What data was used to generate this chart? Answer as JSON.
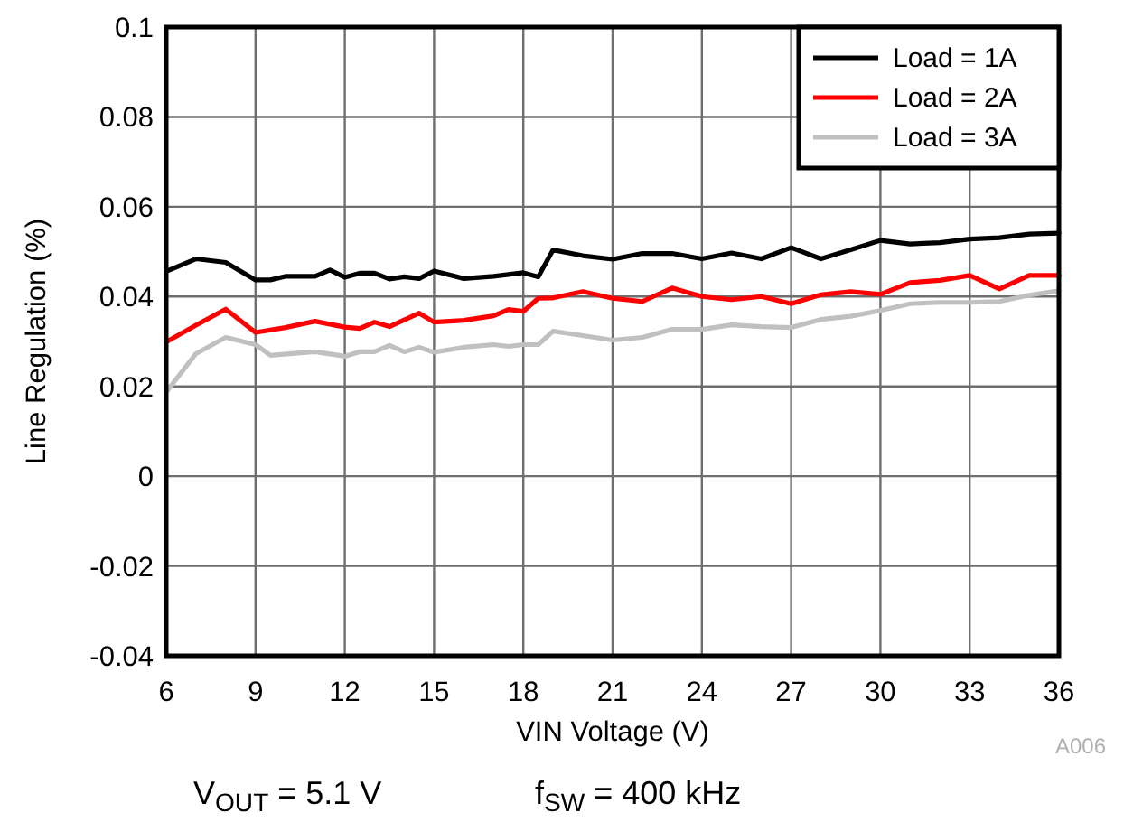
{
  "chart_data": {
    "type": "line",
    "xlabel": "VIN Voltage (V)",
    "ylabel": "Line Regulation (%)",
    "xlim": [
      6,
      36
    ],
    "xticks": [
      6,
      9,
      12,
      15,
      18,
      21,
      24,
      27,
      30,
      33,
      36
    ],
    "ylim": [
      -0.04,
      0.1
    ],
    "yticks": [
      -0.04,
      -0.02,
      0,
      0.02,
      0.04,
      0.06,
      0.08,
      0.1
    ],
    "grid": true,
    "legend": "top right",
    "series": [
      {
        "name": "Load = 1A",
        "color": "#000000",
        "x": [
          6,
          7,
          8,
          9,
          9.5,
          10,
          11,
          11.5,
          12,
          12.5,
          13,
          13.5,
          14,
          14.5,
          15,
          16,
          17,
          18,
          18.5,
          19,
          20,
          21,
          22,
          23,
          24,
          25,
          26,
          27,
          28,
          29,
          30,
          31,
          32,
          33,
          34,
          35,
          36
        ],
        "values": [
          0.0456,
          0.0484,
          0.0476,
          0.0437,
          0.0437,
          0.0445,
          0.0445,
          0.0459,
          0.0443,
          0.0452,
          0.0452,
          0.0439,
          0.0444,
          0.044,
          0.0457,
          0.044,
          0.0445,
          0.0453,
          0.0444,
          0.0504,
          0.0491,
          0.0483,
          0.0496,
          0.0496,
          0.0484,
          0.0497,
          0.0484,
          0.0509,
          0.0484,
          0.0504,
          0.0525,
          0.0517,
          0.052,
          0.0528,
          0.0531,
          0.0539,
          0.0541
        ]
      },
      {
        "name": "Load = 2A",
        "color": "#ff0000",
        "x": [
          6,
          7,
          8,
          9,
          10,
          11,
          12,
          12.5,
          13,
          13.5,
          14.5,
          15,
          16,
          17,
          17.5,
          18,
          18.5,
          19,
          20,
          21,
          22,
          23,
          24,
          25,
          26,
          27,
          28,
          29,
          30,
          31,
          32,
          33,
          34,
          35,
          36
        ],
        "values": [
          0.0299,
          0.0336,
          0.0372,
          0.032,
          0.0331,
          0.0345,
          0.0332,
          0.0329,
          0.0343,
          0.0333,
          0.0363,
          0.0343,
          0.0347,
          0.0357,
          0.0371,
          0.0367,
          0.0396,
          0.0397,
          0.0411,
          0.0396,
          0.0389,
          0.0419,
          0.04,
          0.0393,
          0.04,
          0.0384,
          0.0404,
          0.0411,
          0.0405,
          0.0431,
          0.0436,
          0.0447,
          0.0417,
          0.0447,
          0.0447
        ]
      },
      {
        "name": "Load = 3A",
        "color": "#c0c0c0",
        "x": [
          6,
          7,
          8,
          9,
          9.5,
          11,
          12,
          12.5,
          13,
          13.5,
          14,
          14.5,
          15,
          16,
          17,
          17.5,
          18,
          18.5,
          19,
          20,
          21,
          22,
          23,
          24,
          25,
          26,
          27,
          28,
          29,
          30,
          31,
          32,
          33,
          34,
          35,
          36
        ],
        "values": [
          0.0187,
          0.0273,
          0.0309,
          0.0293,
          0.0269,
          0.0277,
          0.0267,
          0.0277,
          0.0277,
          0.0291,
          0.0277,
          0.0287,
          0.0276,
          0.0287,
          0.0293,
          0.0289,
          0.0293,
          0.0293,
          0.0323,
          0.0313,
          0.0303,
          0.0309,
          0.0327,
          0.0327,
          0.0337,
          0.0333,
          0.0331,
          0.0349,
          0.0356,
          0.0369,
          0.0384,
          0.0387,
          0.0387,
          0.0389,
          0.0403,
          0.0413
        ]
      }
    ],
    "annotations": [
      "A006",
      "V$_{OUT}$ = 5.1 V",
      "f$_{SW}$ = 400 kHz"
    ]
  }
}
